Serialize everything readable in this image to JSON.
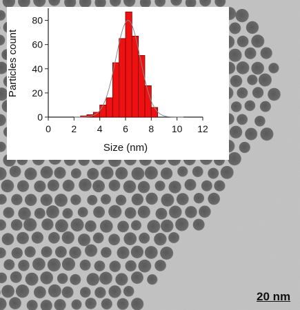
{
  "micrograph": {
    "scale_bar_label": "20 nm",
    "background_color": "#c4c4c4",
    "particle_color": "#5a5a5a"
  },
  "chart_data": {
    "type": "bar",
    "xlabel": "Size (nm)",
    "ylabel": "Particles count",
    "xlim": [
      0,
      12
    ],
    "ylim": [
      0,
      90
    ],
    "xticks": [
      "0",
      "2",
      "4",
      "6",
      "8",
      "10",
      "12"
    ],
    "yticks": [
      "0",
      "20",
      "40",
      "60",
      "80"
    ],
    "bin_width": 0.5,
    "bins": [
      {
        "x": 2.5,
        "count": 1
      },
      {
        "x": 3.0,
        "count": 2
      },
      {
        "x": 3.5,
        "count": 4
      },
      {
        "x": 4.0,
        "count": 10
      },
      {
        "x": 4.5,
        "count": 16
      },
      {
        "x": 5.0,
        "count": 45
      },
      {
        "x": 5.5,
        "count": 65
      },
      {
        "x": 6.0,
        "count": 87
      },
      {
        "x": 6.5,
        "count": 67
      },
      {
        "x": 7.0,
        "count": 51
      },
      {
        "x": 7.5,
        "count": 26
      },
      {
        "x": 8.0,
        "count": 8
      }
    ],
    "fit": {
      "type": "gaussian",
      "mean": 6.2,
      "sigma": 0.95,
      "amplitude": 80
    },
    "bar_color": "#ee1111",
    "fit_color": "#888888",
    "grid": false
  }
}
